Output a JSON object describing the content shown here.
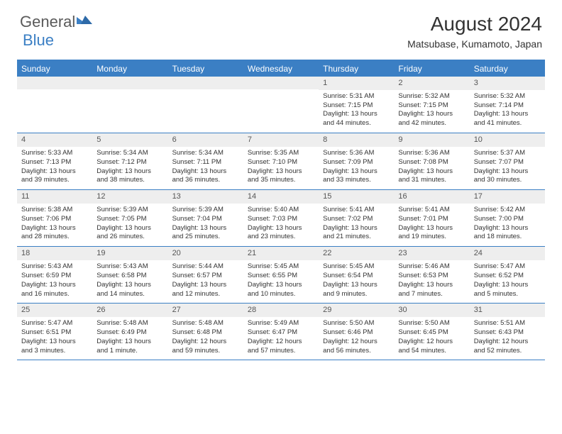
{
  "brand": {
    "part1": "General",
    "part2": "Blue"
  },
  "title": "August 2024",
  "location": "Matsubase, Kumamoto, Japan",
  "colors": {
    "accent": "#3b7fc4",
    "daynum_bg": "#eeeeee",
    "text": "#333333",
    "background": "#ffffff"
  },
  "weekdays": [
    "Sunday",
    "Monday",
    "Tuesday",
    "Wednesday",
    "Thursday",
    "Friday",
    "Saturday"
  ],
  "calendar": {
    "first_weekday_index": 4,
    "days": [
      {
        "n": 1,
        "sunrise": "5:31 AM",
        "sunset": "7:15 PM",
        "daylight": "13 hours and 44 minutes."
      },
      {
        "n": 2,
        "sunrise": "5:32 AM",
        "sunset": "7:15 PM",
        "daylight": "13 hours and 42 minutes."
      },
      {
        "n": 3,
        "sunrise": "5:32 AM",
        "sunset": "7:14 PM",
        "daylight": "13 hours and 41 minutes."
      },
      {
        "n": 4,
        "sunrise": "5:33 AM",
        "sunset": "7:13 PM",
        "daylight": "13 hours and 39 minutes."
      },
      {
        "n": 5,
        "sunrise": "5:34 AM",
        "sunset": "7:12 PM",
        "daylight": "13 hours and 38 minutes."
      },
      {
        "n": 6,
        "sunrise": "5:34 AM",
        "sunset": "7:11 PM",
        "daylight": "13 hours and 36 minutes."
      },
      {
        "n": 7,
        "sunrise": "5:35 AM",
        "sunset": "7:10 PM",
        "daylight": "13 hours and 35 minutes."
      },
      {
        "n": 8,
        "sunrise": "5:36 AM",
        "sunset": "7:09 PM",
        "daylight": "13 hours and 33 minutes."
      },
      {
        "n": 9,
        "sunrise": "5:36 AM",
        "sunset": "7:08 PM",
        "daylight": "13 hours and 31 minutes."
      },
      {
        "n": 10,
        "sunrise": "5:37 AM",
        "sunset": "7:07 PM",
        "daylight": "13 hours and 30 minutes."
      },
      {
        "n": 11,
        "sunrise": "5:38 AM",
        "sunset": "7:06 PM",
        "daylight": "13 hours and 28 minutes."
      },
      {
        "n": 12,
        "sunrise": "5:39 AM",
        "sunset": "7:05 PM",
        "daylight": "13 hours and 26 minutes."
      },
      {
        "n": 13,
        "sunrise": "5:39 AM",
        "sunset": "7:04 PM",
        "daylight": "13 hours and 25 minutes."
      },
      {
        "n": 14,
        "sunrise": "5:40 AM",
        "sunset": "7:03 PM",
        "daylight": "13 hours and 23 minutes."
      },
      {
        "n": 15,
        "sunrise": "5:41 AM",
        "sunset": "7:02 PM",
        "daylight": "13 hours and 21 minutes."
      },
      {
        "n": 16,
        "sunrise": "5:41 AM",
        "sunset": "7:01 PM",
        "daylight": "13 hours and 19 minutes."
      },
      {
        "n": 17,
        "sunrise": "5:42 AM",
        "sunset": "7:00 PM",
        "daylight": "13 hours and 18 minutes."
      },
      {
        "n": 18,
        "sunrise": "5:43 AM",
        "sunset": "6:59 PM",
        "daylight": "13 hours and 16 minutes."
      },
      {
        "n": 19,
        "sunrise": "5:43 AM",
        "sunset": "6:58 PM",
        "daylight": "13 hours and 14 minutes."
      },
      {
        "n": 20,
        "sunrise": "5:44 AM",
        "sunset": "6:57 PM",
        "daylight": "13 hours and 12 minutes."
      },
      {
        "n": 21,
        "sunrise": "5:45 AM",
        "sunset": "6:55 PM",
        "daylight": "13 hours and 10 minutes."
      },
      {
        "n": 22,
        "sunrise": "5:45 AM",
        "sunset": "6:54 PM",
        "daylight": "13 hours and 9 minutes."
      },
      {
        "n": 23,
        "sunrise": "5:46 AM",
        "sunset": "6:53 PM",
        "daylight": "13 hours and 7 minutes."
      },
      {
        "n": 24,
        "sunrise": "5:47 AM",
        "sunset": "6:52 PM",
        "daylight": "13 hours and 5 minutes."
      },
      {
        "n": 25,
        "sunrise": "5:47 AM",
        "sunset": "6:51 PM",
        "daylight": "13 hours and 3 minutes."
      },
      {
        "n": 26,
        "sunrise": "5:48 AM",
        "sunset": "6:49 PM",
        "daylight": "13 hours and 1 minute."
      },
      {
        "n": 27,
        "sunrise": "5:48 AM",
        "sunset": "6:48 PM",
        "daylight": "12 hours and 59 minutes."
      },
      {
        "n": 28,
        "sunrise": "5:49 AM",
        "sunset": "6:47 PM",
        "daylight": "12 hours and 57 minutes."
      },
      {
        "n": 29,
        "sunrise": "5:50 AM",
        "sunset": "6:46 PM",
        "daylight": "12 hours and 56 minutes."
      },
      {
        "n": 30,
        "sunrise": "5:50 AM",
        "sunset": "6:45 PM",
        "daylight": "12 hours and 54 minutes."
      },
      {
        "n": 31,
        "sunrise": "5:51 AM",
        "sunset": "6:43 PM",
        "daylight": "12 hours and 52 minutes."
      }
    ]
  },
  "labels": {
    "sunrise": "Sunrise:",
    "sunset": "Sunset:",
    "daylight": "Daylight:"
  },
  "typography": {
    "title_fontsize": 28,
    "location_fontsize": 14,
    "weekday_fontsize": 12,
    "body_fontsize": 9.5
  }
}
